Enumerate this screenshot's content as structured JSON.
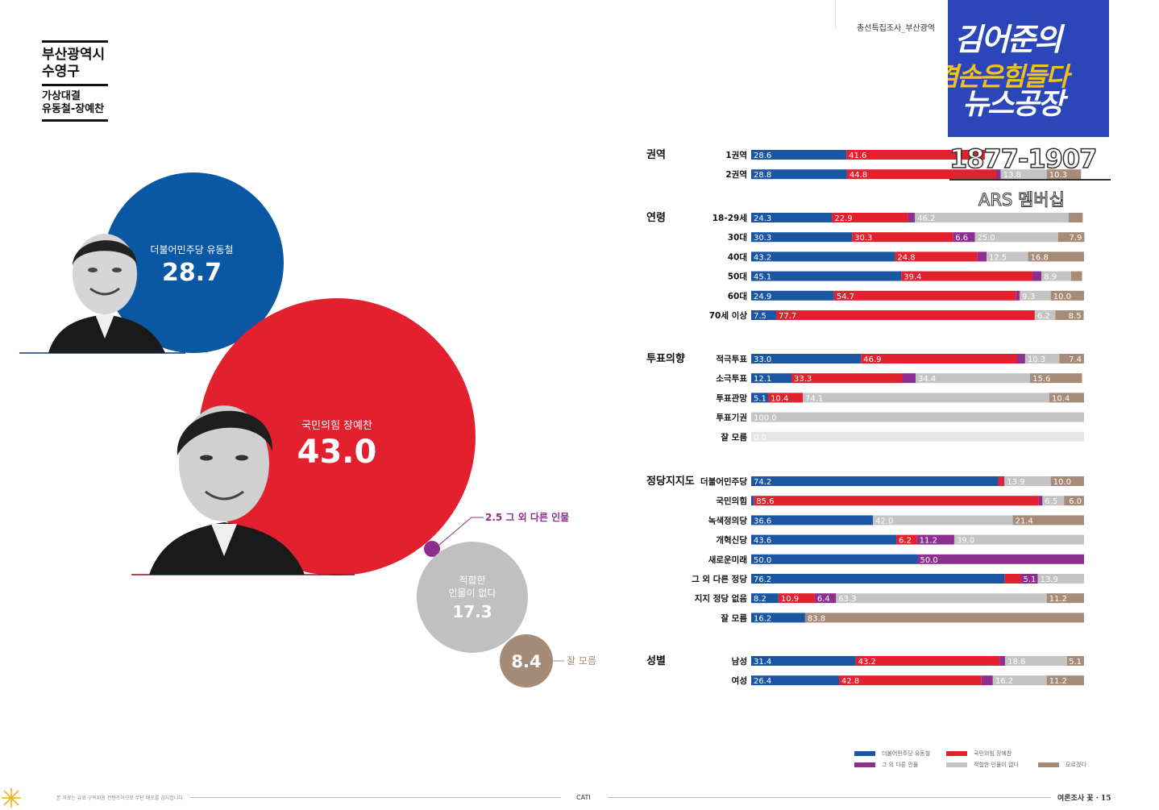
{
  "header": {
    "title_lines": [
      "부산광역시",
      "수영구"
    ],
    "subtitle_lines": [
      "가상대결",
      "유동철-장예찬"
    ],
    "survey_note": "총선특집조사_부산광역"
  },
  "bubbles": [
    {
      "key": "dem",
      "label": "더불어민주당 유동철",
      "value": "28.7",
      "color": "#0a57a4"
    },
    {
      "key": "ppp",
      "label": "국민의힘 장예찬",
      "value": "43.0",
      "color": "#e3202e"
    },
    {
      "key": "other",
      "label": "2.5 그 외 다른 인물",
      "color": "#8e2d8c"
    },
    {
      "key": "none",
      "label_lines": [
        "적합한",
        "인물이 없다"
      ],
      "value": "17.3",
      "color": "#c0c0c0"
    },
    {
      "key": "dk",
      "value": "8.4",
      "label": "잘 모름",
      "color": "#a48b78"
    }
  ],
  "chart_data": {
    "type": "bar",
    "stacked": true,
    "orientation": "horizontal",
    "xlim": [
      0,
      100
    ],
    "legend_position": "bottom-right",
    "series_colors": {
      "dem": "#1b56a3",
      "ppp": "#e3202e",
      "other": "#8c2f8e",
      "none": "#c4c4c4",
      "dk": "#a58b78",
      "empty": "#e5e5e5"
    },
    "groups": [
      {
        "name": "권역",
        "rows": [
          {
            "label": "1권역",
            "values": [
              28.6,
              41.6,
              0,
              0,
              0
            ]
          },
          {
            "label": "2권역",
            "values": [
              28.8,
              44.8,
              1.4,
              13.8,
              10.3
            ]
          }
        ]
      },
      {
        "name": "연령",
        "rows": [
          {
            "label": "18-29세",
            "values": [
              24.3,
              22.9,
              2.0,
              46.2,
              4.2
            ]
          },
          {
            "label": "30대",
            "values": [
              30.3,
              30.3,
              6.6,
              25.0,
              7.9
            ]
          },
          {
            "label": "40대",
            "values": [
              43.2,
              24.8,
              2.7,
              12.5,
              16.8
            ]
          },
          {
            "label": "50대",
            "values": [
              45.1,
              39.4,
              2.7,
              8.9,
              3.3
            ]
          },
          {
            "label": "60대",
            "values": [
              24.9,
              54.7,
              1.1,
              9.3,
              10.0
            ]
          },
          {
            "label": "70세 이상",
            "values": [
              7.5,
              77.7,
              0,
              6.2,
              8.5
            ]
          }
        ]
      },
      {
        "name": "투표의향",
        "rows": [
          {
            "label": "적극투표",
            "values": [
              33.0,
              46.9,
              2.4,
              10.3,
              7.4
            ]
          },
          {
            "label": "소극투표",
            "values": [
              12.1,
              33.3,
              4.0,
              34.4,
              15.6
            ]
          },
          {
            "label": "투표관망",
            "values": [
              5.1,
              10.4,
              0,
              74.1,
              10.4
            ]
          },
          {
            "label": "투표기권",
            "values": [
              0,
              0,
              0,
              100.0,
              0
            ]
          },
          {
            "label": "잘 모름",
            "values": [
              0,
              0,
              0,
              0,
              0
            ],
            "empty_label": "0.0"
          }
        ]
      },
      {
        "name": "정당지지도",
        "rows": [
          {
            "label": "더불어민주당",
            "values": [
              74.2,
              1.6,
              0.3,
              13.9,
              10.0
            ]
          },
          {
            "label": "국민의힘",
            "values": [
              0.8,
              85.6,
              1.1,
              6.5,
              6.0
            ]
          },
          {
            "label": "녹색정의당",
            "values": [
              36.6,
              0,
              0,
              42.0,
              21.4
            ]
          },
          {
            "label": "개혁신당",
            "values": [
              43.6,
              6.2,
              11.2,
              39.0,
              0
            ]
          },
          {
            "label": "새로운미래",
            "values": [
              50.0,
              0,
              50.0,
              0,
              0
            ]
          },
          {
            "label": "그 외 다른 정당",
            "values": [
              76.2,
              4.8,
              5.1,
              13.9,
              0
            ]
          },
          {
            "label": "지지 정당 없음",
            "values": [
              8.2,
              10.9,
              6.4,
              63.3,
              11.2
            ]
          },
          {
            "label": "잘 모름",
            "values": [
              16.2,
              0,
              0,
              0,
              83.8
            ]
          }
        ]
      },
      {
        "name": "성별",
        "rows": [
          {
            "label": "남성",
            "values": [
              31.4,
              43.2,
              1.7,
              18.6,
              5.1
            ]
          },
          {
            "label": "여성",
            "values": [
              26.4,
              42.8,
              3.4,
              16.2,
              11.2
            ]
          }
        ]
      }
    ],
    "value_labels": {
      "1권역": [
        "28.6",
        "41.6",
        "",
        "",
        ""
      ],
      "2권역": [
        "28.8",
        "44.8",
        "",
        "13.8",
        "10.3"
      ],
      "18-29세": [
        "24.3",
        "22.9",
        "",
        "46.2",
        ""
      ],
      "30대": [
        "30.3",
        "30.3",
        "6.6",
        "25.0",
        "7.9"
      ],
      "40대": [
        "43.2",
        "24.8",
        "",
        "12.5",
        "16.8"
      ],
      "50대": [
        "45.1",
        "39.4",
        "",
        "8.9",
        ""
      ],
      "60대": [
        "24.9",
        "54.7",
        "",
        "9.3",
        "10.0"
      ],
      "70세 이상": [
        "7.5",
        "77.7",
        "",
        "6.2",
        "8.5"
      ],
      "적극투표": [
        "33.0",
        "46.9",
        "",
        "10.3",
        "7.4"
      ],
      "소극투표": [
        "12.1",
        "33.3",
        "",
        "34.4",
        "15.6"
      ],
      "투표관망": [
        "5.1",
        "10.4",
        "",
        "74.1",
        "10.4"
      ],
      "투표기권": [
        "",
        "",
        "",
        "100.0",
        ""
      ],
      "더불어민주당": [
        "74.2",
        "",
        "",
        "13.9",
        "10.0"
      ],
      "국민의힘": [
        "",
        "85.6",
        "",
        "6.5",
        "6.0"
      ],
      "녹색정의당": [
        "36.6",
        "",
        "",
        "42.0",
        "21.4"
      ],
      "개혁신당": [
        "43.6",
        "6.2",
        "11.2",
        "39.0",
        ""
      ],
      "새로운미래": [
        "50.0",
        "",
        "50.0",
        "",
        ""
      ],
      "그 외 다른 정당": [
        "76.2",
        "",
        "5.1",
        "13.9",
        ""
      ],
      "지지 정당 없음": [
        "8.2",
        "10.9",
        "6.4",
        "63.3",
        "11.2"
      ],
      "잘 모름": [
        "16.2",
        "",
        "",
        "",
        "83.8"
      ],
      "남성": [
        "31.4",
        "43.2",
        "",
        "18.6",
        "5.1"
      ],
      "여성": [
        "26.4",
        "42.8",
        "",
        "16.2",
        "11.2"
      ]
    },
    "legend": [
      {
        "key": "dem",
        "label": "더불어민주당 유동철"
      },
      {
        "key": "ppp",
        "label": "국민의힘 장예찬"
      },
      {
        "key": "other",
        "label": "그 외 다른 인물"
      },
      {
        "key": "none",
        "label": "적합한 인물이 없다"
      },
      {
        "key": "dk",
        "label": "모르겠다"
      }
    ]
  },
  "overlay": {
    "line1": "김어준의",
    "line2": "겸손은힘들다",
    "line3": "뉴스공장",
    "phone": "1877-1907",
    "ars": "ARS 멤버십"
  },
  "footer": {
    "left_note": "본 자료는 유료 구독자용 컨텐츠이므로 무단 배포를 금지합니다",
    "method": "CATI",
    "page_label": "여론조사 꽃 · 15"
  }
}
